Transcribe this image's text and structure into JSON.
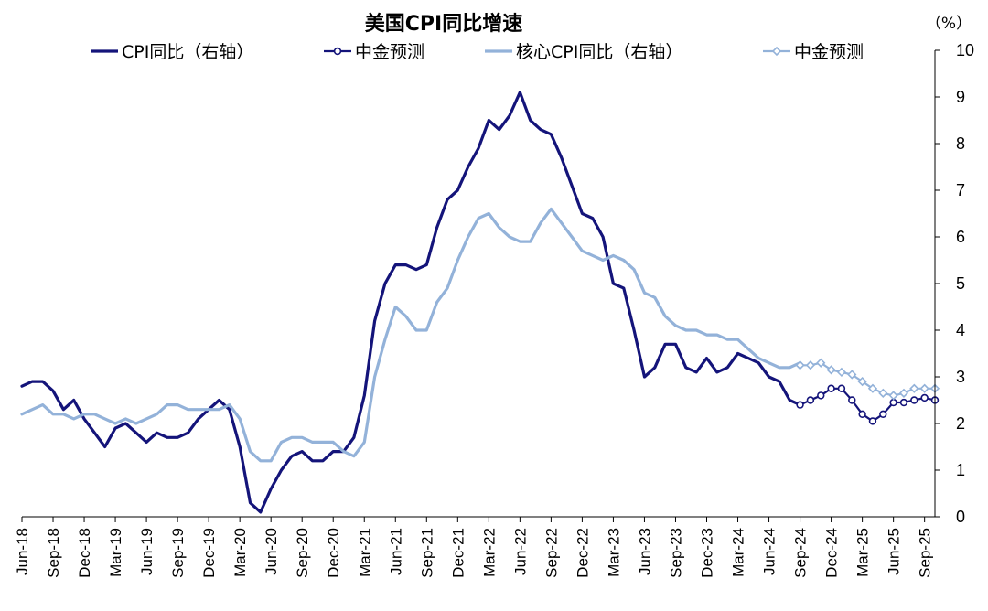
{
  "chart_data": {
    "type": "line",
    "title": "美国CPI同比增速",
    "unit_label": "（%）",
    "y_axis_side": "right",
    "ylim": [
      0,
      10
    ],
    "y_ticks": [
      "0",
      "1",
      "2",
      "3",
      "4",
      "5",
      "6",
      "7",
      "8",
      "9",
      "10"
    ],
    "x_range": [
      "2018-06",
      "2025-10"
    ],
    "x_tick_labels": [
      "Jun-18",
      "Sep-18",
      "Dec-18",
      "Mar-19",
      "Jun-19",
      "Sep-19",
      "Dec-19",
      "Mar-20",
      "Jun-20",
      "Sep-20",
      "Dec-20",
      "Mar-21",
      "Jun-21",
      "Sep-21",
      "Dec-21",
      "Mar-22",
      "Jun-22",
      "Sep-22",
      "Dec-22",
      "Mar-23",
      "Jun-23",
      "Sep-23",
      "Dec-23",
      "Mar-24",
      "Jun-24",
      "Sep-24",
      "Dec-24",
      "Mar-25",
      "Jun-25",
      "Sep-25"
    ],
    "grid": false,
    "legend_position": "top",
    "series": [
      {
        "name": "CPI同比（右轴）",
        "color": "#14147a",
        "marker": "none",
        "x": [
          "2018-06",
          "2018-07",
          "2018-08",
          "2018-09",
          "2018-10",
          "2018-11",
          "2018-12",
          "2019-01",
          "2019-02",
          "2019-03",
          "2019-04",
          "2019-05",
          "2019-06",
          "2019-07",
          "2019-08",
          "2019-09",
          "2019-10",
          "2019-11",
          "2019-12",
          "2020-01",
          "2020-02",
          "2020-03",
          "2020-04",
          "2020-05",
          "2020-06",
          "2020-07",
          "2020-08",
          "2020-09",
          "2020-10",
          "2020-11",
          "2020-12",
          "2021-01",
          "2021-02",
          "2021-03",
          "2021-04",
          "2021-05",
          "2021-06",
          "2021-07",
          "2021-08",
          "2021-09",
          "2021-10",
          "2021-11",
          "2021-12",
          "2022-01",
          "2022-02",
          "2022-03",
          "2022-04",
          "2022-05",
          "2022-06",
          "2022-07",
          "2022-08",
          "2022-09",
          "2022-10",
          "2022-11",
          "2022-12",
          "2023-01",
          "2023-02",
          "2023-03",
          "2023-04",
          "2023-05",
          "2023-06",
          "2023-07",
          "2023-08",
          "2023-09",
          "2023-10",
          "2023-11",
          "2023-12",
          "2024-01",
          "2024-02",
          "2024-03",
          "2024-04",
          "2024-05",
          "2024-06",
          "2024-07",
          "2024-08",
          "2024-09"
        ],
        "values": [
          2.8,
          2.9,
          2.9,
          2.7,
          2.3,
          2.5,
          2.1,
          1.8,
          1.5,
          1.9,
          2.0,
          1.8,
          1.6,
          1.8,
          1.7,
          1.7,
          1.8,
          2.1,
          2.3,
          2.5,
          2.3,
          1.5,
          0.3,
          0.1,
          0.6,
          1.0,
          1.3,
          1.4,
          1.2,
          1.2,
          1.4,
          1.4,
          1.7,
          2.6,
          4.2,
          5.0,
          5.4,
          5.4,
          5.3,
          5.4,
          6.2,
          6.8,
          7.0,
          7.5,
          7.9,
          8.5,
          8.3,
          8.6,
          9.1,
          8.5,
          8.3,
          8.2,
          7.7,
          7.1,
          6.5,
          6.4,
          6.0,
          5.0,
          4.9,
          4.0,
          3.0,
          3.2,
          3.7,
          3.7,
          3.2,
          3.1,
          3.4,
          3.1,
          3.2,
          3.5,
          3.4,
          3.3,
          3.0,
          2.9,
          2.5,
          2.4
        ]
      },
      {
        "name": "中金预测",
        "color": "#14147a",
        "marker": "hollow-circle",
        "x": [
          "2024-09",
          "2024-10",
          "2024-11",
          "2024-12",
          "2025-01",
          "2025-02",
          "2025-03",
          "2025-04",
          "2025-05",
          "2025-06",
          "2025-07",
          "2025-08",
          "2025-09",
          "2025-10"
        ],
        "values": [
          2.4,
          2.5,
          2.6,
          2.75,
          2.75,
          2.5,
          2.2,
          2.05,
          2.2,
          2.45,
          2.45,
          2.5,
          2.55,
          2.5
        ]
      },
      {
        "name": "核心CPI同比（右轴）",
        "color": "#93b2d9",
        "marker": "none",
        "x": [
          "2018-06",
          "2018-07",
          "2018-08",
          "2018-09",
          "2018-10",
          "2018-11",
          "2018-12",
          "2019-01",
          "2019-02",
          "2019-03",
          "2019-04",
          "2019-05",
          "2019-06",
          "2019-07",
          "2019-08",
          "2019-09",
          "2019-10",
          "2019-11",
          "2019-12",
          "2020-01",
          "2020-02",
          "2020-03",
          "2020-04",
          "2020-05",
          "2020-06",
          "2020-07",
          "2020-08",
          "2020-09",
          "2020-10",
          "2020-11",
          "2020-12",
          "2021-01",
          "2021-02",
          "2021-03",
          "2021-04",
          "2021-05",
          "2021-06",
          "2021-07",
          "2021-08",
          "2021-09",
          "2021-10",
          "2021-11",
          "2021-12",
          "2022-01",
          "2022-02",
          "2022-03",
          "2022-04",
          "2022-05",
          "2022-06",
          "2022-07",
          "2022-08",
          "2022-09",
          "2022-10",
          "2022-11",
          "2022-12",
          "2023-01",
          "2023-02",
          "2023-03",
          "2023-04",
          "2023-05",
          "2023-06",
          "2023-07",
          "2023-08",
          "2023-09",
          "2023-10",
          "2023-11",
          "2023-12",
          "2024-01",
          "2024-02",
          "2024-03",
          "2024-04",
          "2024-05",
          "2024-06",
          "2024-07",
          "2024-08",
          "2024-09"
        ],
        "values": [
          2.2,
          2.3,
          2.4,
          2.2,
          2.2,
          2.1,
          2.2,
          2.2,
          2.1,
          2.0,
          2.1,
          2.0,
          2.1,
          2.2,
          2.4,
          2.4,
          2.3,
          2.3,
          2.3,
          2.3,
          2.4,
          2.1,
          1.4,
          1.2,
          1.2,
          1.6,
          1.7,
          1.7,
          1.6,
          1.6,
          1.6,
          1.4,
          1.3,
          1.6,
          3.0,
          3.8,
          4.5,
          4.3,
          4.0,
          4.0,
          4.6,
          4.9,
          5.5,
          6.0,
          6.4,
          6.5,
          6.2,
          6.0,
          5.9,
          5.9,
          6.3,
          6.6,
          6.3,
          6.0,
          5.7,
          5.6,
          5.5,
          5.6,
          5.5,
          5.3,
          4.8,
          4.7,
          4.3,
          4.1,
          4.0,
          4.0,
          3.9,
          3.9,
          3.8,
          3.8,
          3.6,
          3.4,
          3.3,
          3.2,
          3.2,
          3.3
        ]
      },
      {
        "name": "中金预测",
        "color": "#93b2d9",
        "marker": "hollow-diamond",
        "x": [
          "2024-09",
          "2024-10",
          "2024-11",
          "2024-12",
          "2025-01",
          "2025-02",
          "2025-03",
          "2025-04",
          "2025-05",
          "2025-06",
          "2025-07",
          "2025-08",
          "2025-09",
          "2025-10"
        ],
        "values": [
          3.25,
          3.25,
          3.3,
          3.15,
          3.1,
          3.05,
          2.9,
          2.75,
          2.65,
          2.6,
          2.65,
          2.75,
          2.75,
          2.75
        ]
      }
    ]
  }
}
